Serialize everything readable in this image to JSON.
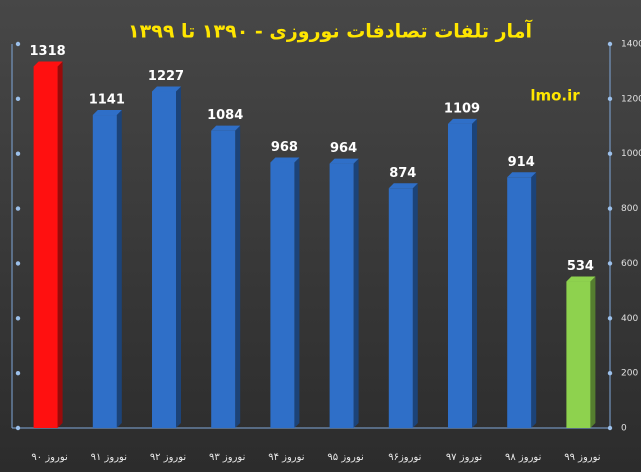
{
  "chart_data": {
    "type": "bar",
    "title": "آمار تلفات تصادفات نوروزی - ۱۳۹۰ تا ۱۳۹۹",
    "watermark": "lmo.ir",
    "categories": [
      "نوروز ۹۰",
      "نوروز ۹۱",
      "نوروز ۹۲",
      "نوروز ۹۳",
      "نوروز ۹۴",
      "نوروز ۹۵",
      "نوروز۹۶",
      "نوروز ۹۷",
      "نوروز ۹۸",
      "نوروز ۹۹"
    ],
    "values": [
      1318,
      1141,
      1227,
      1084,
      968,
      964,
      874,
      1109,
      914,
      534
    ],
    "colors": [
      "#ff1010",
      "#2f6fc8",
      "#2f6fc8",
      "#2f6fc8",
      "#2f6fc8",
      "#2f6fc8",
      "#2f6fc8",
      "#2f6fc8",
      "#2f6fc8",
      "#8ed24e"
    ],
    "ylim": [
      0,
      1400
    ],
    "yticks": [
      0,
      200,
      400,
      600,
      800,
      1000,
      1200,
      1400
    ]
  }
}
